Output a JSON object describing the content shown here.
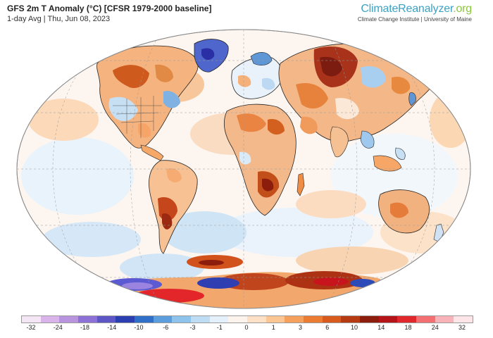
{
  "header": {
    "title": "GFS 2m T Anomaly (°C) [CFSR 1979-2000 baseline]",
    "subtitle": "1-day Avg | Thu, Jun 08, 2023"
  },
  "brand": {
    "name_main": "ClimateReanalyzer",
    "name_tld": ".org",
    "affiliation": "Climate Change Institute | University of Maine"
  },
  "legend": {
    "labels": [
      "-32",
      "-24",
      "-18",
      "-14",
      "-10",
      "-6",
      "-3",
      "-1",
      "0",
      "1",
      "3",
      "6",
      "10",
      "14",
      "18",
      "24",
      "32"
    ],
    "colors": [
      "#f5e6f5",
      "#d9b3ea",
      "#b894df",
      "#8e71d6",
      "#5d57c6",
      "#2b3fb0",
      "#2f6fc8",
      "#5c9ddd",
      "#8ec3ec",
      "#bfdcf5",
      "#e4f0fb",
      "#fbf3ec",
      "#fde0c6",
      "#fbc594",
      "#f6a05e",
      "#ec7c32",
      "#d85a1c",
      "#b63a12",
      "#8c1c0c",
      "#b51418",
      "#e0282c",
      "#f36f72",
      "#f7b3b8",
      "#fde5e8"
    ],
    "colors_note": "diverging blue-white-red scale"
  },
  "map": {
    "projection": "Robinson-like global",
    "ocean_color": "#ffffff",
    "features": [
      "coastlines",
      "country-borders",
      "graticule"
    ]
  }
}
